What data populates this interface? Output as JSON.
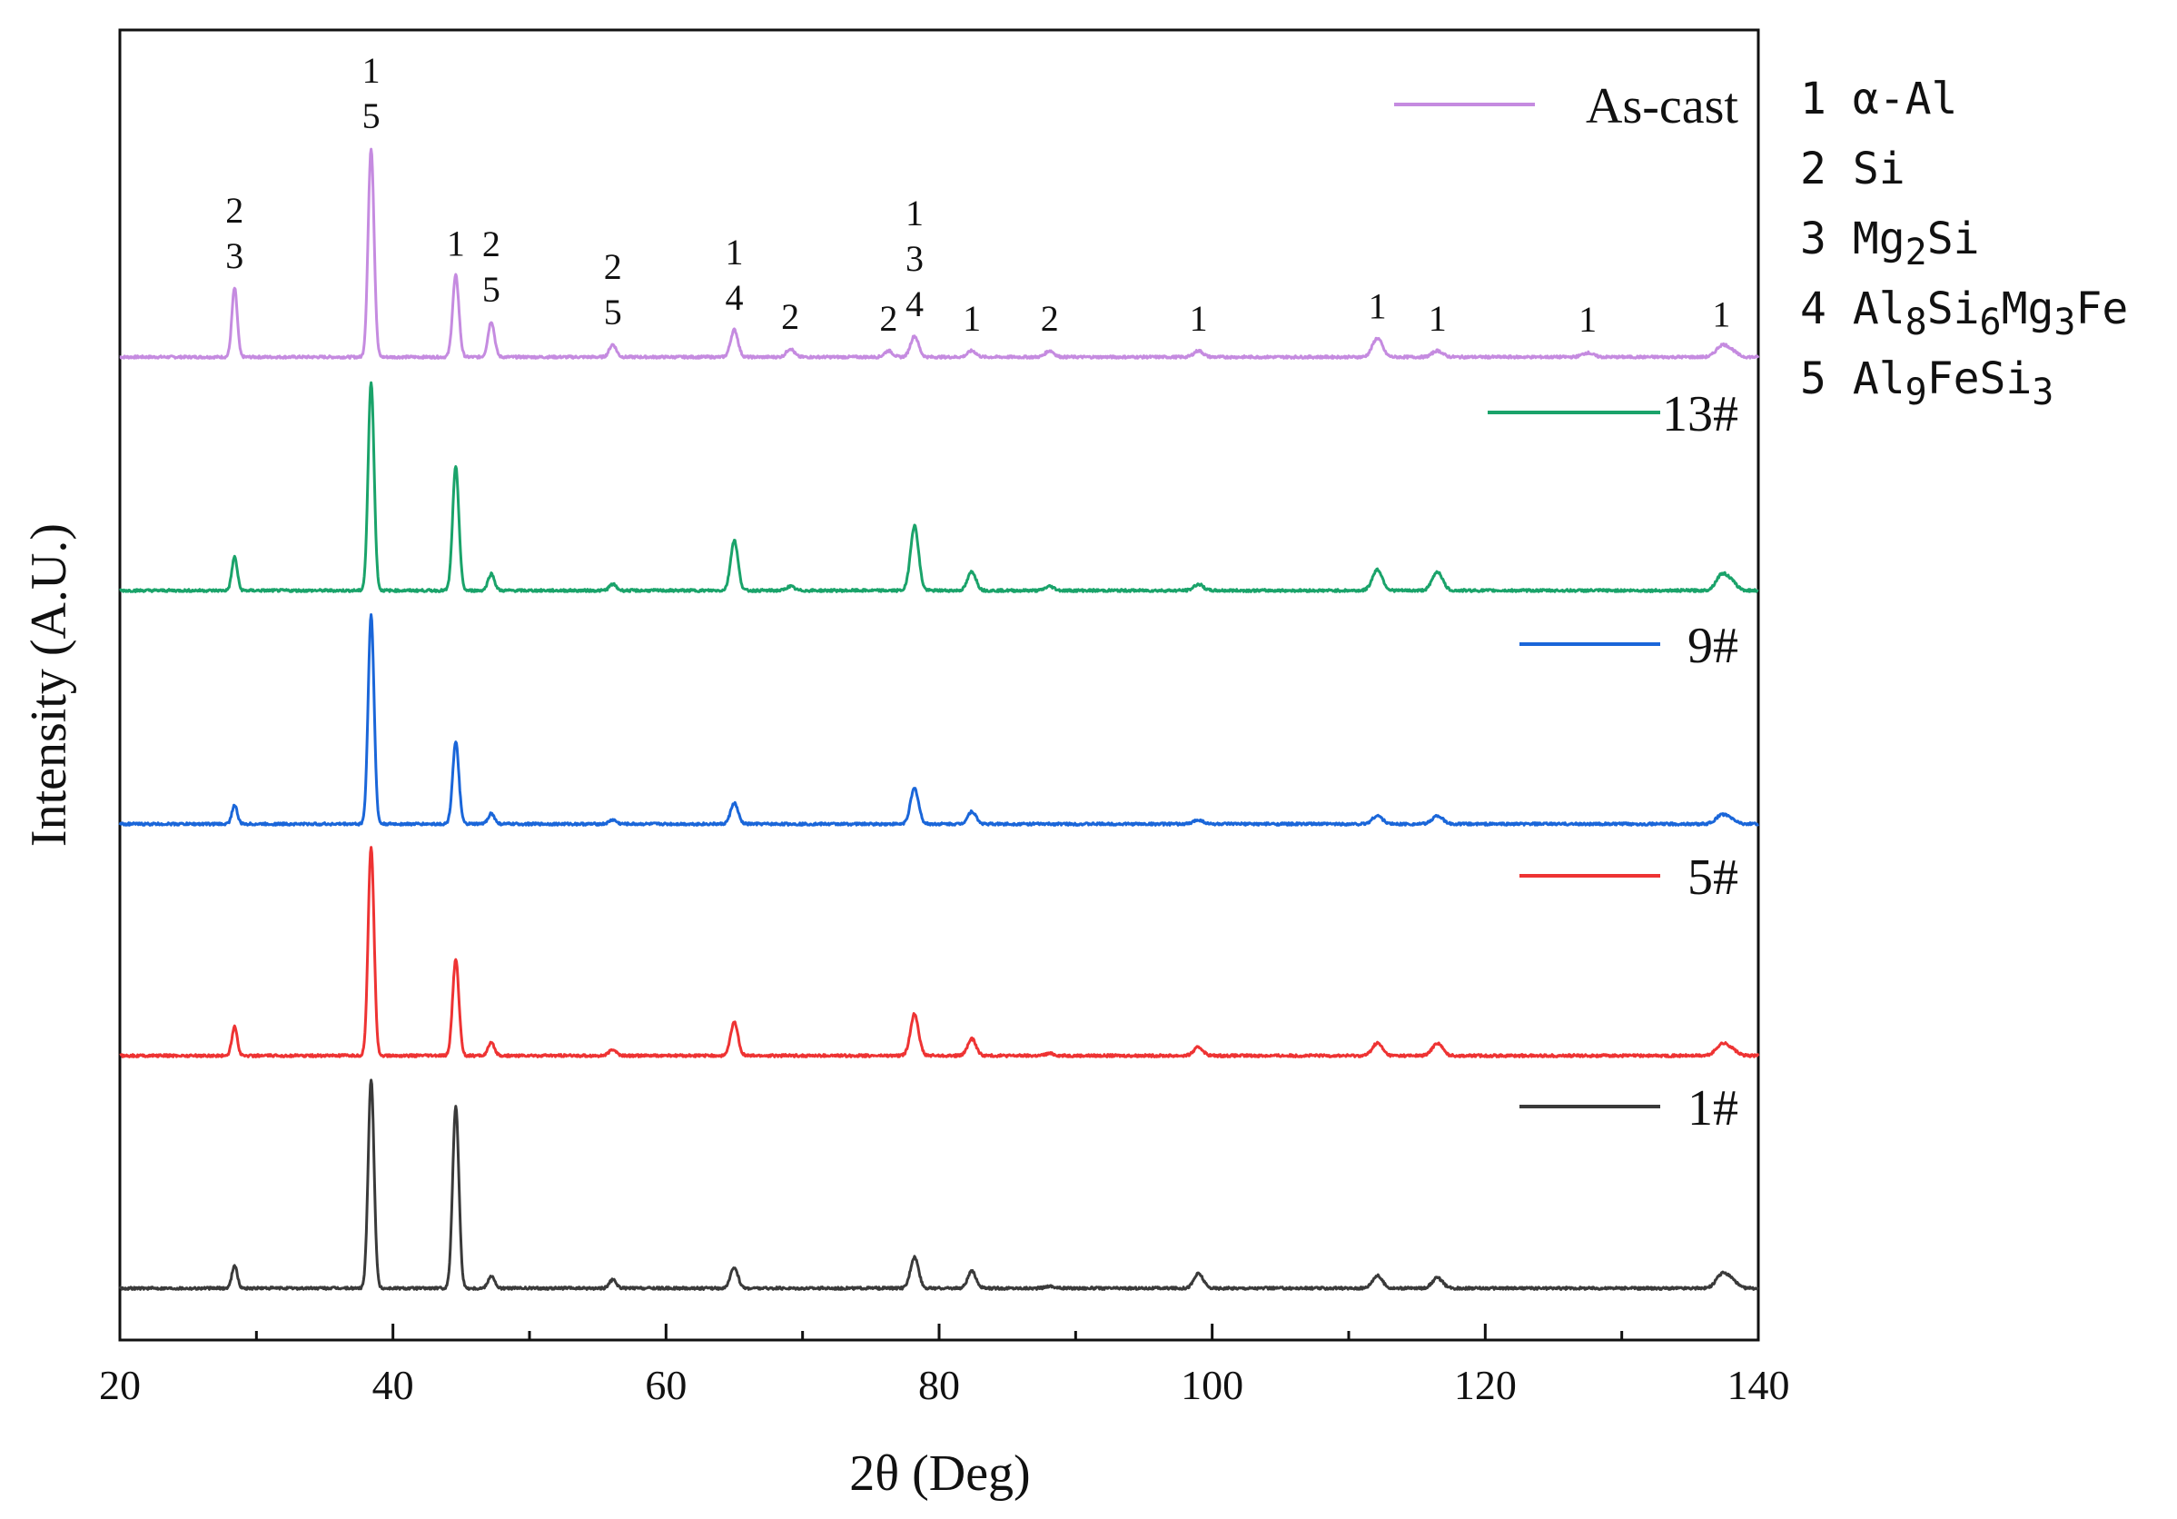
{
  "chart_data": {
    "type": "line",
    "xlabel": "2θ (Deg)",
    "ylabel": "Intensity (A.U.)",
    "xlim": [
      20,
      140
    ],
    "xticks": [
      20,
      40,
      60,
      80,
      100,
      120,
      140
    ],
    "yticks": "none",
    "grid": false,
    "legend_position": "inside-right",
    "series": [
      {
        "name": "As-cast",
        "color": "#c58be0",
        "baseline_frac": 0.045,
        "peaks": [
          [
            28.4,
            0.33
          ],
          [
            38.4,
            1.0
          ],
          [
            44.6,
            0.39
          ],
          [
            47.2,
            0.17
          ],
          [
            56.1,
            0.06
          ],
          [
            65.0,
            0.13
          ],
          [
            69.1,
            0.04
          ],
          [
            76.3,
            0.03
          ],
          [
            78.2,
            0.1
          ],
          [
            82.4,
            0.03
          ],
          [
            88.1,
            0.03
          ],
          [
            99.0,
            0.03
          ],
          [
            112.1,
            0.09
          ],
          [
            116.5,
            0.03
          ],
          [
            127.5,
            0.02
          ],
          [
            137.3,
            0.05
          ],
          [
            138.0,
            0.03
          ]
        ]
      },
      {
        "name": "13#",
        "color": "#1aa36a",
        "baseline_frac": 0.045,
        "peaks": [
          [
            28.4,
            0.16
          ],
          [
            38.4,
            1.0
          ],
          [
            44.6,
            0.59
          ],
          [
            47.2,
            0.08
          ],
          [
            56.1,
            0.03
          ],
          [
            65.0,
            0.24
          ],
          [
            69.1,
            0.02
          ],
          [
            78.2,
            0.31
          ],
          [
            82.4,
            0.09
          ],
          [
            88.1,
            0.02
          ],
          [
            99.0,
            0.03
          ],
          [
            112.1,
            0.1
          ],
          [
            116.5,
            0.09
          ],
          [
            137.3,
            0.07
          ],
          [
            138.0,
            0.04
          ]
        ]
      },
      {
        "name": "9#",
        "color": "#1a66d9",
        "baseline_frac": 0.045,
        "peaks": [
          [
            28.4,
            0.09
          ],
          [
            38.4,
            1.0
          ],
          [
            44.6,
            0.39
          ],
          [
            47.2,
            0.05
          ],
          [
            56.1,
            0.02
          ],
          [
            65.0,
            0.1
          ],
          [
            78.2,
            0.17
          ],
          [
            82.4,
            0.06
          ],
          [
            99.0,
            0.02
          ],
          [
            112.1,
            0.04
          ],
          [
            116.5,
            0.04
          ],
          [
            137.3,
            0.04
          ],
          [
            138.0,
            0.02
          ]
        ]
      },
      {
        "name": "5#",
        "color": "#ee3333",
        "baseline_frac": 0.045,
        "peaks": [
          [
            28.4,
            0.14
          ],
          [
            38.4,
            1.0
          ],
          [
            44.6,
            0.46
          ],
          [
            47.2,
            0.06
          ],
          [
            56.1,
            0.03
          ],
          [
            65.0,
            0.16
          ],
          [
            78.2,
            0.2
          ],
          [
            82.4,
            0.08
          ],
          [
            88.1,
            0.01
          ],
          [
            99.0,
            0.04
          ],
          [
            112.1,
            0.06
          ],
          [
            116.5,
            0.06
          ],
          [
            137.3,
            0.05
          ],
          [
            138.0,
            0.03
          ]
        ]
      },
      {
        "name": "1#",
        "color": "#3a3a3a",
        "baseline_frac": 0.045,
        "peaks": [
          [
            28.4,
            0.11
          ],
          [
            38.4,
            1.0
          ],
          [
            44.6,
            0.87
          ],
          [
            47.2,
            0.06
          ],
          [
            56.1,
            0.04
          ],
          [
            65.0,
            0.1
          ],
          [
            78.2,
            0.15
          ],
          [
            82.4,
            0.08
          ],
          [
            88.1,
            0.01
          ],
          [
            99.0,
            0.07
          ],
          [
            112.1,
            0.06
          ],
          [
            116.5,
            0.05
          ],
          [
            137.3,
            0.06
          ],
          [
            138.0,
            0.04
          ]
        ]
      }
    ],
    "phase_legend": [
      {
        "num": "1",
        "label": "α-Al",
        "base": "α-Al",
        "subs": []
      },
      {
        "num": "2",
        "label": "Si",
        "base": "Si",
        "subs": []
      },
      {
        "num": "3",
        "label": "Mg2Si",
        "base": "Mg",
        "subs": [
          [
            "2",
            "Si"
          ]
        ]
      },
      {
        "num": "4",
        "label": "Al8Si6Mg3Fe",
        "base": "Al",
        "subs": [
          [
            "8",
            "Si"
          ],
          [
            "6",
            "Mg"
          ],
          [
            "3",
            "Fe"
          ]
        ]
      },
      {
        "num": "5",
        "label": "Al9FeSi3",
        "base": "Al",
        "subs": [
          [
            "9",
            "FeSi"
          ],
          [
            "3",
            ""
          ]
        ]
      }
    ],
    "annotations": [
      {
        "x": 28.4,
        "labels": [
          "2",
          "3"
        ]
      },
      {
        "x": 38.4,
        "labels": [
          "1",
          "5"
        ]
      },
      {
        "x": 44.6,
        "labels": [
          "1"
        ]
      },
      {
        "x": 47.2,
        "labels": [
          "2",
          "5"
        ]
      },
      {
        "x": 56.1,
        "labels": [
          "2",
          "5"
        ]
      },
      {
        "x": 65.0,
        "labels": [
          "1",
          "4"
        ]
      },
      {
        "x": 69.1,
        "labels": [
          "2"
        ]
      },
      {
        "x": 76.3,
        "labels": [
          "2"
        ]
      },
      {
        "x": 78.2,
        "labels": [
          "1",
          "3",
          "4"
        ]
      },
      {
        "x": 82.4,
        "labels": [
          "1"
        ]
      },
      {
        "x": 88.1,
        "labels": [
          "2"
        ]
      },
      {
        "x": 99.0,
        "labels": [
          "1"
        ]
      },
      {
        "x": 112.1,
        "labels": [
          "1"
        ]
      },
      {
        "x": 116.5,
        "labels": [
          "1"
        ]
      },
      {
        "x": 127.5,
        "labels": [
          "1"
        ]
      },
      {
        "x": 137.3,
        "labels": [
          "1"
        ]
      }
    ]
  }
}
